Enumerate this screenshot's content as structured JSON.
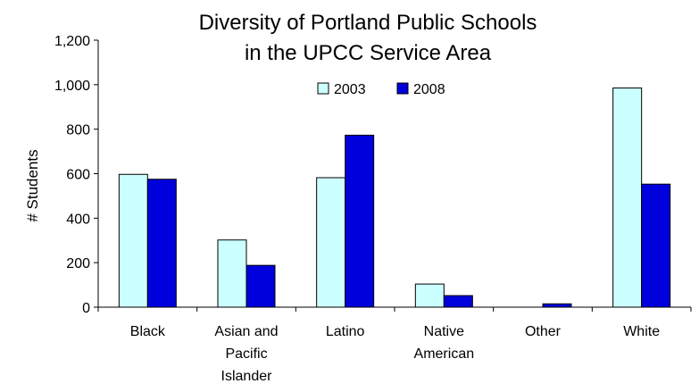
{
  "chart_data": {
    "type": "bar",
    "title": [
      "Diversity of Portland Public Schools",
      "in the UPCC Service Area"
    ],
    "ylabel": "# Students",
    "xlabel": "",
    "ylim": [
      0,
      1200
    ],
    "y_ticks": [
      "0",
      "200",
      "400",
      "600",
      "800",
      "1,000",
      "1,200"
    ],
    "y_tick_values": [
      0,
      200,
      400,
      600,
      800,
      1000,
      1200
    ],
    "categories": [
      [
        "Black"
      ],
      [
        "Asian and",
        "Pacific",
        "Islander"
      ],
      [
        "Latino"
      ],
      [
        "Native",
        "American"
      ],
      [
        "Other"
      ],
      [
        "White"
      ]
    ],
    "series": [
      {
        "name": "2003",
        "color": "#ccffff",
        "values": [
          597,
          302,
          582,
          104,
          0,
          985
        ]
      },
      {
        "name": "2008",
        "color": "#0000dd",
        "values": [
          575,
          188,
          773,
          52,
          15,
          553
        ]
      }
    ],
    "legend": "top-center",
    "grid": false
  }
}
